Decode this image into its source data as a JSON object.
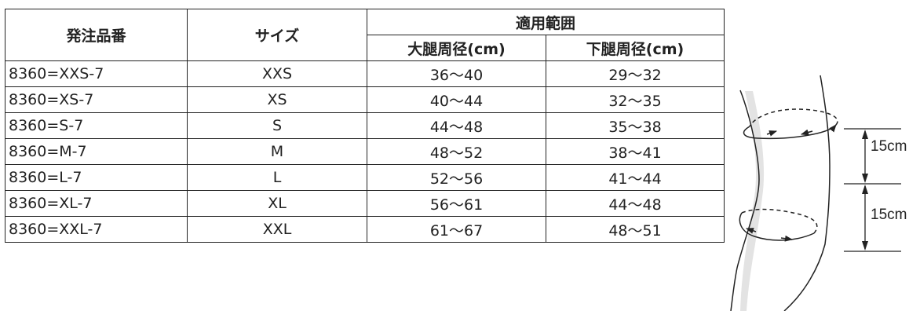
{
  "table": {
    "headers": {
      "product_code": "発注品番",
      "size": "サイズ",
      "applicable_range": "適用範囲",
      "thigh": "大腿周径(cm)",
      "calf": "下腿周径(cm)"
    },
    "rows": [
      {
        "code": "8360=XXS-7",
        "size": "XXS",
        "thigh": "36〜40",
        "calf": "29〜32"
      },
      {
        "code": "8360=XS-7",
        "size": "XS",
        "thigh": "40〜44",
        "calf": "32〜35"
      },
      {
        "code": "8360=S-7",
        "size": "S",
        "thigh": "44〜48",
        "calf": "35〜38"
      },
      {
        "code": "8360=M-7",
        "size": "M",
        "thigh": "48〜52",
        "calf": "38〜41"
      },
      {
        "code": "8360=L-7",
        "size": "L",
        "thigh": "52〜56",
        "calf": "41〜44"
      },
      {
        "code": "8360=XL-7",
        "size": "XL",
        "thigh": "56〜61",
        "calf": "44〜48"
      },
      {
        "code": "8360=XXL-7",
        "size": "XXL",
        "thigh": "61〜67",
        "calf": "48〜51"
      }
    ]
  },
  "diagram": {
    "upper_distance": "15cm",
    "lower_distance": "15cm"
  }
}
